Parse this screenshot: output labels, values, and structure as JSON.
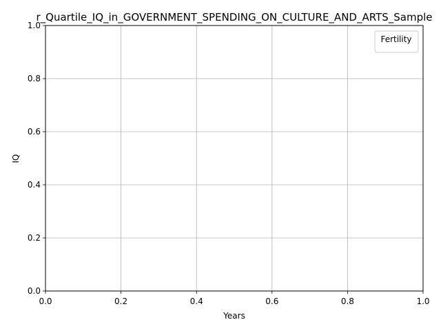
{
  "chart_data": {
    "type": "line",
    "title": "r_Quartile_IQ_in_GOVERNMENT_SPENDING_ON_CULTURE_AND_ARTS_Sample",
    "xlabel": "Years",
    "ylabel": "IQ",
    "xlim": [
      0,
      1
    ],
    "ylim": [
      0,
      1
    ],
    "xticks": [
      "0.0",
      "0.2",
      "0.4",
      "0.6",
      "0.8",
      "1.0"
    ],
    "yticks": [
      "0.0",
      "0.2",
      "0.4",
      "0.6",
      "0.8",
      "1.0"
    ],
    "grid": true,
    "legend": {
      "title": "Fertility",
      "position": "top-right",
      "entries": []
    },
    "series": []
  }
}
